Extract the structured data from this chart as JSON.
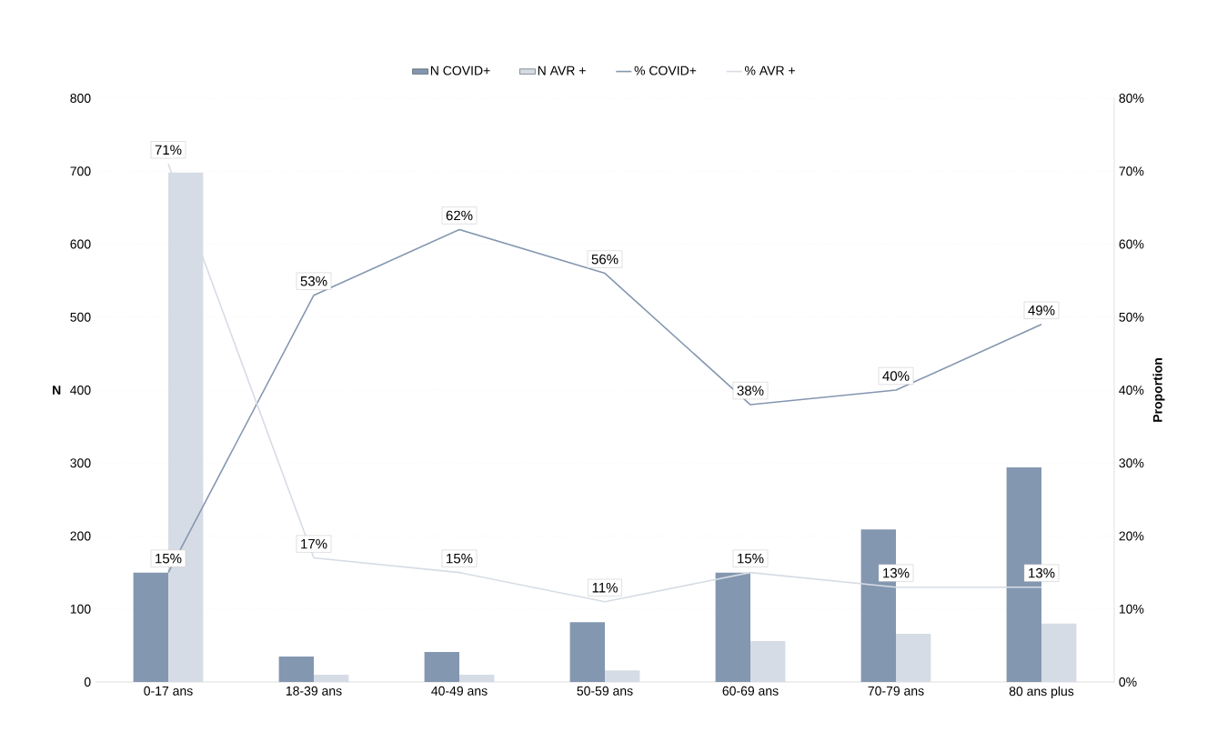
{
  "chart_data": {
    "type": "bar",
    "categories": [
      "0-17 ans",
      "18-39 ans",
      "40-49 ans",
      "50-59 ans",
      "60-69 ans",
      "70-79 ans",
      "80 ans plus"
    ],
    "ylabel": "N",
    "y2label": "Proportion",
    "ylim": [
      0,
      800
    ],
    "yticks": [
      0,
      100,
      200,
      300,
      400,
      500,
      600,
      700,
      800
    ],
    "y2lim": [
      0,
      80
    ],
    "y2ticks": [
      {
        "value": 0,
        "label": "0%"
      },
      {
        "value": 10,
        "label": "10%"
      },
      {
        "value": 20,
        "label": "20%"
      },
      {
        "value": 30,
        "label": "30%"
      },
      {
        "value": 40,
        "label": "40%"
      },
      {
        "value": 50,
        "label": "50%"
      },
      {
        "value": 60,
        "label": "60%"
      },
      {
        "value": 70,
        "label": "70%"
      },
      {
        "value": 80,
        "label": "80%"
      }
    ],
    "grid": "y",
    "legend": "top",
    "marker": "none",
    "series": [
      {
        "name": "N COVID+",
        "color": "#8497b0",
        "values": [
          150,
          35,
          41,
          82,
          150,
          209,
          294
        ]
      },
      {
        "name": "N AVR +",
        "color": "#d6dce5",
        "values": [
          698,
          10,
          10,
          16,
          56,
          66,
          80
        ]
      },
      {
        "name": "% COVID+",
        "type": "line",
        "axis": "y2",
        "color": "#8497b0",
        "values": [
          15,
          53,
          62,
          56,
          38,
          40,
          49
        ],
        "value_labels": [
          "15%",
          "53%",
          "62%",
          "56%",
          "38%",
          "40%",
          "49%"
        ]
      },
      {
        "name": "% AVR +",
        "type": "line",
        "axis": "y2",
        "color": "#d6dce5",
        "values": [
          71,
          17,
          15,
          11,
          15,
          13,
          13
        ],
        "value_labels": [
          "71%",
          "17%",
          "15%",
          "11%",
          "15%",
          "13%",
          "13%"
        ]
      }
    ]
  }
}
